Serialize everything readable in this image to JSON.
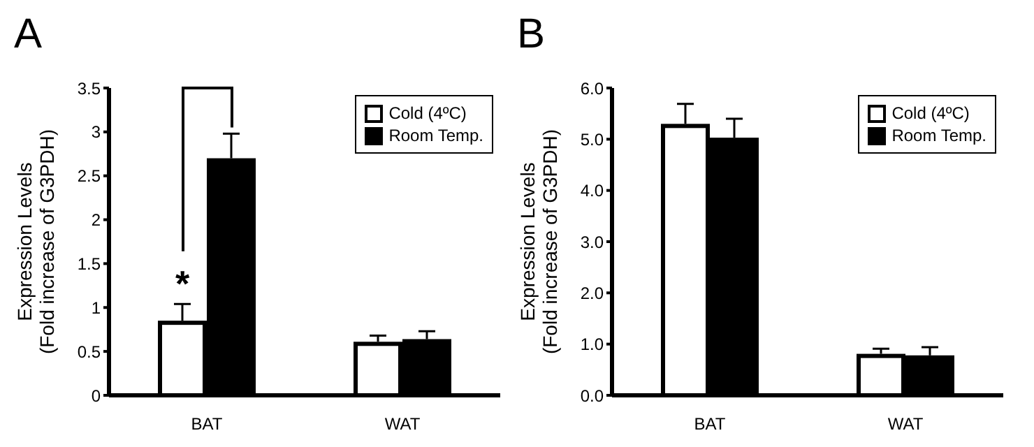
{
  "chart_data": [
    {
      "type": "bar",
      "title": "A",
      "ylabel": "Expression Levels\n(Fold increase of G3PDH)",
      "categories": [
        "BAT",
        "WAT"
      ],
      "series": [
        {
          "name": "Cold (4ºC)",
          "color": "#ffffff",
          "values": [
            0.85,
            0.61
          ],
          "errors": [
            0.19,
            0.07
          ]
        },
        {
          "name": "Room Temp.",
          "color": "#000000",
          "values": [
            2.7,
            0.64
          ],
          "errors": [
            0.28,
            0.09
          ]
        }
      ],
      "ylim": [
        0,
        3.5
      ],
      "yticks": [
        0,
        0.5,
        1,
        1.5,
        2,
        2.5,
        3,
        3.5
      ],
      "legend": "top right",
      "grid": false,
      "annotations": [
        "*"
      ]
    },
    {
      "type": "bar",
      "title": "B",
      "ylabel": "Expression Levels\n(Fold increase of G3PDH)",
      "categories": [
        "BAT",
        "WAT"
      ],
      "series": [
        {
          "name": "Cold (4ºC)",
          "color": "#ffffff",
          "values": [
            5.3,
            0.81
          ],
          "errors": [
            0.39,
            0.1
          ]
        },
        {
          "name": "Room Temp.",
          "color": "#000000",
          "values": [
            5.03,
            0.78
          ],
          "errors": [
            0.37,
            0.16
          ]
        }
      ],
      "ylim": [
        0,
        6
      ],
      "yticks": [
        {
          "value": 0,
          "label": "0.0"
        },
        {
          "value": 1,
          "label": "1.0"
        },
        {
          "value": 2,
          "label": "2.0"
        },
        {
          "value": 3,
          "label": "3.0"
        },
        {
          "value": 4,
          "label": "4.0"
        },
        {
          "value": 5,
          "label": "5.0"
        },
        {
          "value": 6,
          "label": "6.0"
        }
      ],
      "legend": "top right",
      "grid": false
    }
  ]
}
